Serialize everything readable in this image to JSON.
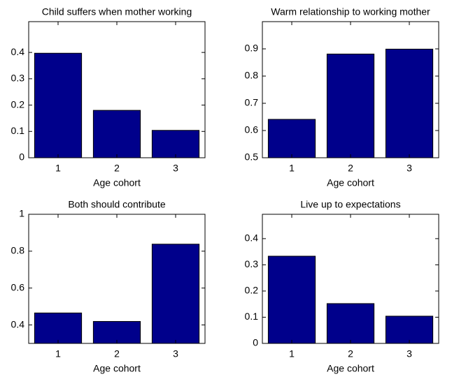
{
  "chart_data": [
    {
      "type": "bar",
      "title": "Child suffers when mother working",
      "x_label": "Age cohort",
      "categories": [
        "1",
        "2",
        "3"
      ],
      "values": [
        0.397,
        0.18,
        0.104
      ],
      "color": "#00008b",
      "ylim": [
        0,
        0.517
      ],
      "yticks": [
        0,
        0.1,
        0.2,
        0.3,
        0.4
      ]
    },
    {
      "type": "bar",
      "title": "Warm relationship to working mother",
      "x_label": "Age cohort",
      "categories": [
        "1",
        "2",
        "3"
      ],
      "values": [
        0.641,
        0.881,
        0.899
      ],
      "color": "#00008b",
      "ylim": [
        0.5,
        1.0
      ],
      "yticks": [
        0.5,
        0.6,
        0.7,
        0.8,
        0.9
      ]
    },
    {
      "type": "bar",
      "title": "Both should contribute",
      "x_label": "Age cohort",
      "categories": [
        "1",
        "2",
        "3"
      ],
      "values": [
        0.465,
        0.419,
        0.838
      ],
      "color": "#00008b",
      "ylim": [
        0.3,
        1
      ],
      "yticks": [
        0.4,
        0.6,
        0.8,
        1
      ]
    },
    {
      "type": "bar",
      "title": "Live up to expectations",
      "x_label": "Age cohort",
      "categories": [
        "1",
        "2",
        "3"
      ],
      "values": [
        0.333,
        0.152,
        0.104
      ],
      "color": "#00008b",
      "ylim": [
        0,
        0.493
      ],
      "yticks": [
        0,
        0.1,
        0.2,
        0.3,
        0.4
      ]
    }
  ]
}
